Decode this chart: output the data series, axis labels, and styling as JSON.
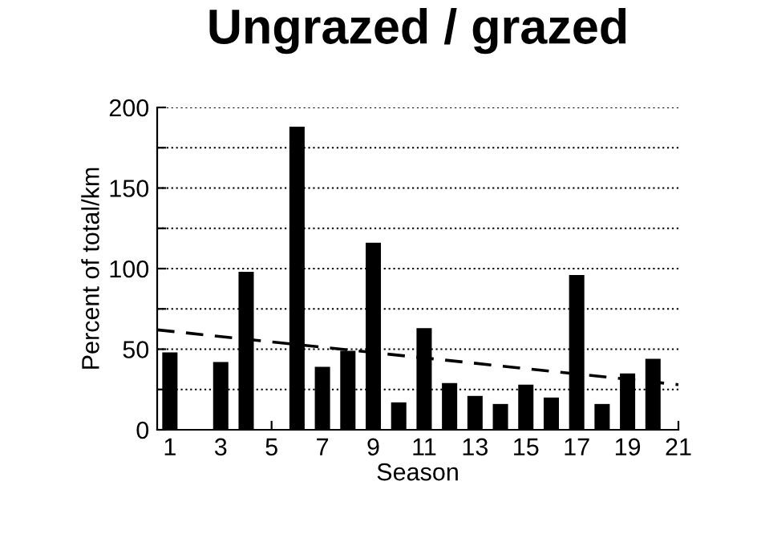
{
  "chart_data": {
    "type": "bar",
    "title": "Ungrazed / grazed",
    "xlabel": "Season",
    "ylabel": "Percent of total/km",
    "x": [
      1,
      2,
      3,
      4,
      5,
      6,
      7,
      8,
      9,
      10,
      11,
      12,
      13,
      14,
      15,
      16,
      17,
      18,
      19,
      20
    ],
    "series": [
      {
        "color": "#000000",
        "values": [
          48,
          null,
          42,
          98,
          null,
          188,
          39,
          49,
          116,
          17,
          63,
          29,
          21,
          16,
          28,
          20,
          96,
          16,
          35,
          44
        ]
      },
      {
        "type": "line",
        "color": "#000000",
        "line_style": "dashed",
        "x": [
          0.5,
          21
        ],
        "values": [
          62,
          28
        ]
      }
    ],
    "xlim": [
      0.5,
      21
    ],
    "xticks": [
      1,
      3,
      5,
      7,
      9,
      11,
      13,
      15,
      17,
      19,
      21
    ],
    "ylim": [
      0,
      200
    ],
    "yticks": [
      0,
      {
        "value": 25,
        "label": null
      },
      50,
      {
        "value": 75,
        "label": null
      },
      100,
      {
        "value": 125,
        "label": null
      },
      150,
      {
        "value": 175,
        "label": null
      },
      200
    ],
    "grid": "y",
    "legend": false
  }
}
